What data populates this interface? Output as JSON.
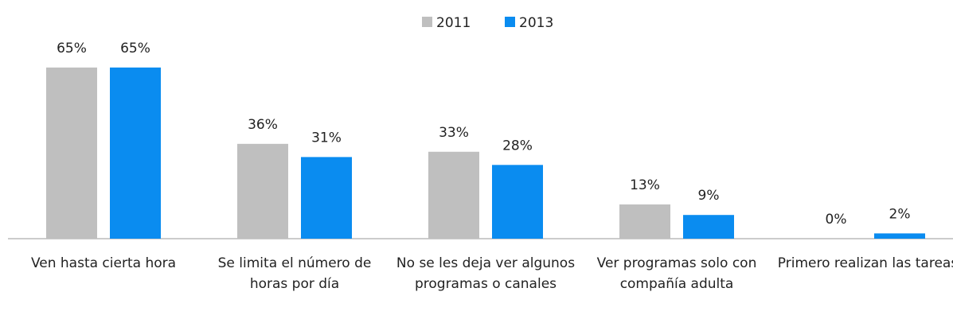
{
  "chart_data": {
    "type": "bar",
    "categories": [
      "Ven hasta cierta hora",
      "Se limita el número de horas por día",
      "No se les deja ver algunos programas o canales",
      "Ver programas solo con compañía adulta",
      "Primero realizan las tareas"
    ],
    "series": [
      {
        "name": "2011",
        "color": "#bfbfbf",
        "values": [
          65,
          36,
          33,
          13,
          0
        ],
        "value_labels": [
          "65%",
          "36%",
          "33%",
          "13%",
          "0%"
        ]
      },
      {
        "name": "2013",
        "color": "#0a8cf0",
        "values": [
          65,
          31,
          28,
          9,
          2
        ],
        "value_labels": [
          "65%",
          "31%",
          "28%",
          "9%",
          "2%"
        ]
      }
    ],
    "legend": "top"
  }
}
